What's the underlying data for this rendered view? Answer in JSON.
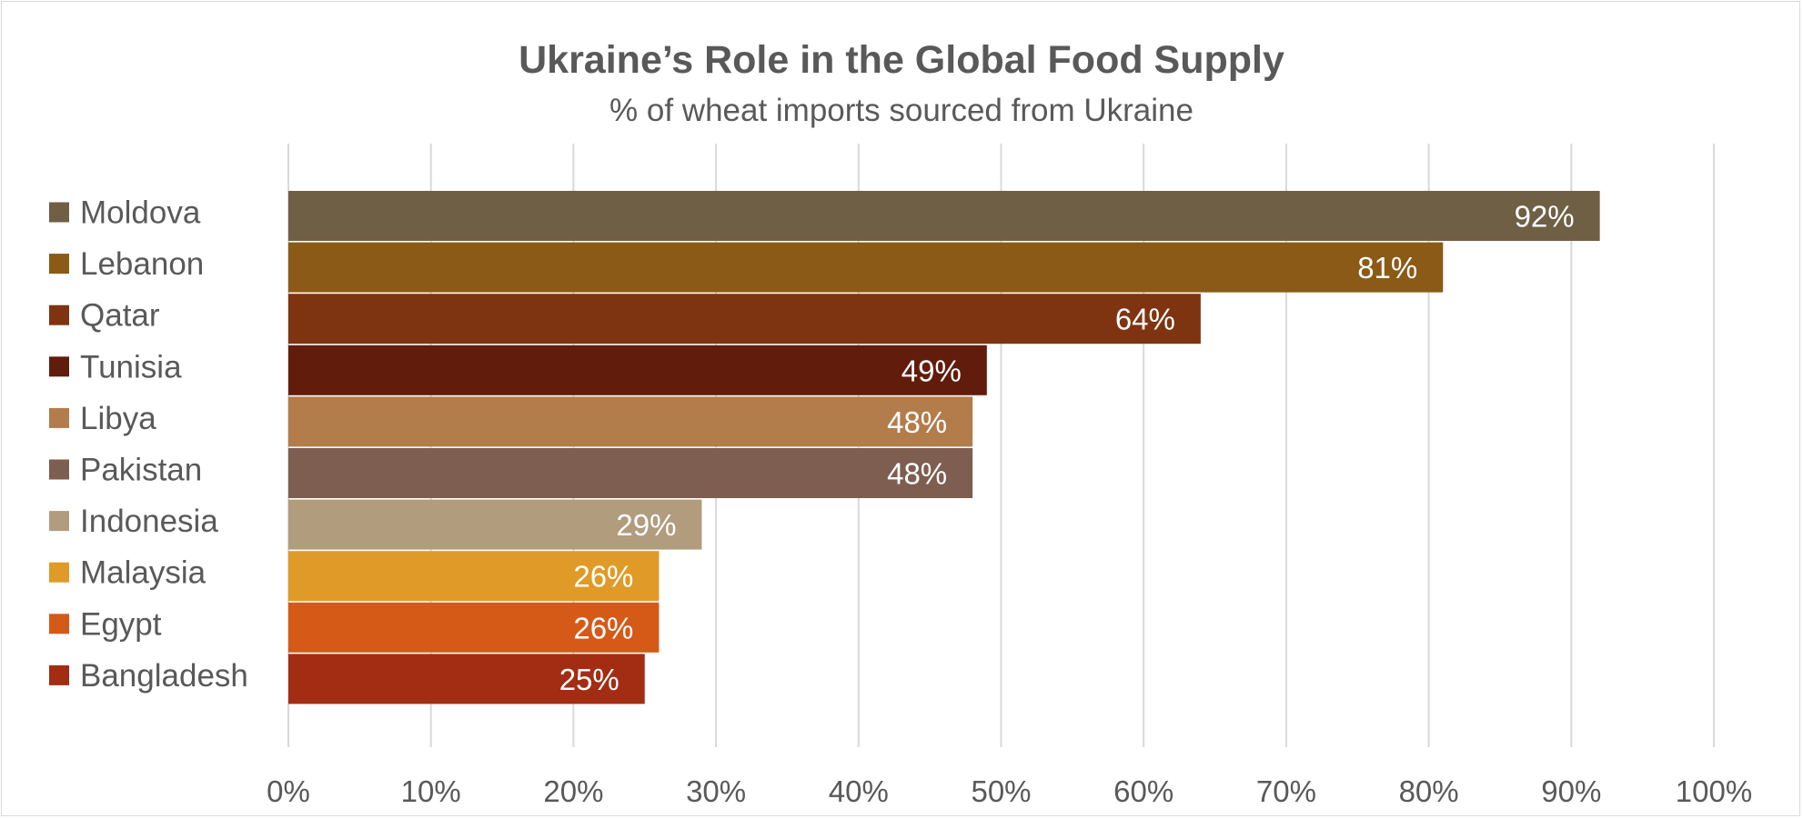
{
  "chart_data": {
    "type": "bar",
    "orientation": "horizontal",
    "title": "Ukraine’s Role in the Global Food Supply",
    "subtitle": "% of wheat imports sourced from Ukraine",
    "xlabel": "",
    "ylabel": "",
    "xlim": [
      0,
      100
    ],
    "x_tick_values": [
      0,
      10,
      20,
      30,
      40,
      50,
      60,
      70,
      80,
      90,
      100
    ],
    "x_tick_labels": [
      "0%",
      "10%",
      "20%",
      "30%",
      "40%",
      "50%",
      "60%",
      "70%",
      "80%",
      "90%",
      "100%"
    ],
    "grid": "vertical",
    "legend_position": "left",
    "categories": [
      "Moldova",
      "Lebanon",
      "Qatar",
      "Tunisia",
      "Libya",
      "Pakistan",
      "Indonesia",
      "Malaysia",
      "Egypt",
      "Bangladesh"
    ],
    "values": [
      92,
      81,
      64,
      49,
      48,
      48,
      29,
      26,
      26,
      25
    ],
    "data_labels": [
      "92%",
      "81%",
      "64%",
      "49%",
      "48%",
      "48%",
      "29%",
      "26%",
      "26%",
      "25%"
    ],
    "colors": [
      "#6f5f45",
      "#8b5a16",
      "#7f3411",
      "#621c0b",
      "#b27c4b",
      "#7e5e50",
      "#b29c7e",
      "#e09a27",
      "#d55a18",
      "#a32d13"
    ]
  }
}
